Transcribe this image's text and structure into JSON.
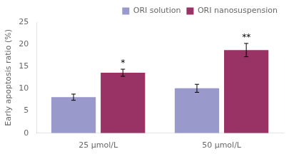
{
  "chart_data": {
    "type": "bar",
    "ylabel": "Early apoptosis ratio (%)",
    "categories": [
      "25 μmol/L",
      "50 μmol/L"
    ],
    "series": [
      {
        "name": "ORI solution",
        "color": "#9999cc",
        "values": [
          8.1,
          10.1
        ],
        "errors": [
          0.7,
          0.9
        ]
      },
      {
        "name": "ORI nanosuspension",
        "color": "#993366",
        "values": [
          13.6,
          18.7
        ],
        "errors": [
          0.8,
          1.5
        ]
      }
    ],
    "annotations": [
      {
        "category": "25 μmol/L",
        "series": "ORI nanosuspension",
        "text": "*"
      },
      {
        "category": "50 μmol/L",
        "series": "ORI nanosuspension",
        "text": "**"
      }
    ],
    "ylim": [
      0,
      25
    ],
    "yticks": [
      0,
      5,
      10,
      15,
      20,
      25
    ],
    "grid": false,
    "legend": "upper right"
  }
}
